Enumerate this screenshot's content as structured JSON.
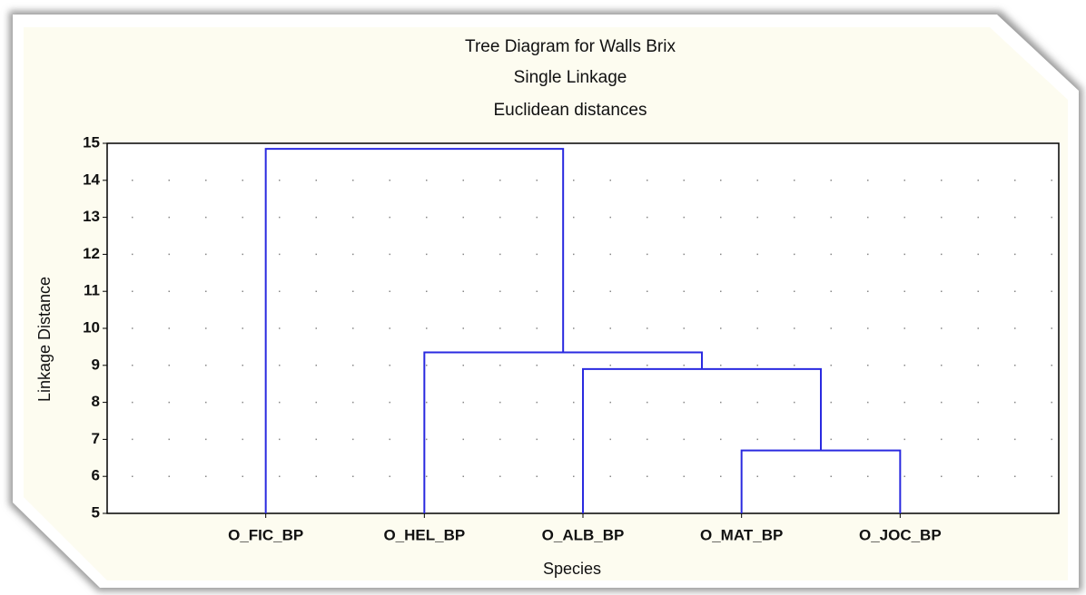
{
  "chart_data": {
    "type": "dendrogram",
    "title": "Tree Diagram for Walls Brix",
    "subtitle": [
      "Single Linkage",
      "Euclidean distances"
    ],
    "xlabel": "Species",
    "ylabel": "Linkage Distance",
    "categories": [
      "O_FIC_BP",
      "O_HEL_BP",
      "O_ALB_BP",
      "O_MAT_BP",
      "O_JOC_BP"
    ],
    "merges": [
      {
        "join": [
          3,
          4
        ],
        "height": 6.7
      },
      {
        "join": [
          2,
          5
        ],
        "height": 8.9
      },
      {
        "join": [
          1,
          6
        ],
        "height": 9.35
      },
      {
        "join": [
          0,
          7
        ],
        "height": 14.85
      }
    ],
    "color": "#2a2ae0",
    "ylim": [
      5,
      15
    ],
    "yticks": [
      5,
      6,
      7,
      8,
      9,
      10,
      11,
      12,
      13,
      14,
      15
    ],
    "grid": true
  }
}
